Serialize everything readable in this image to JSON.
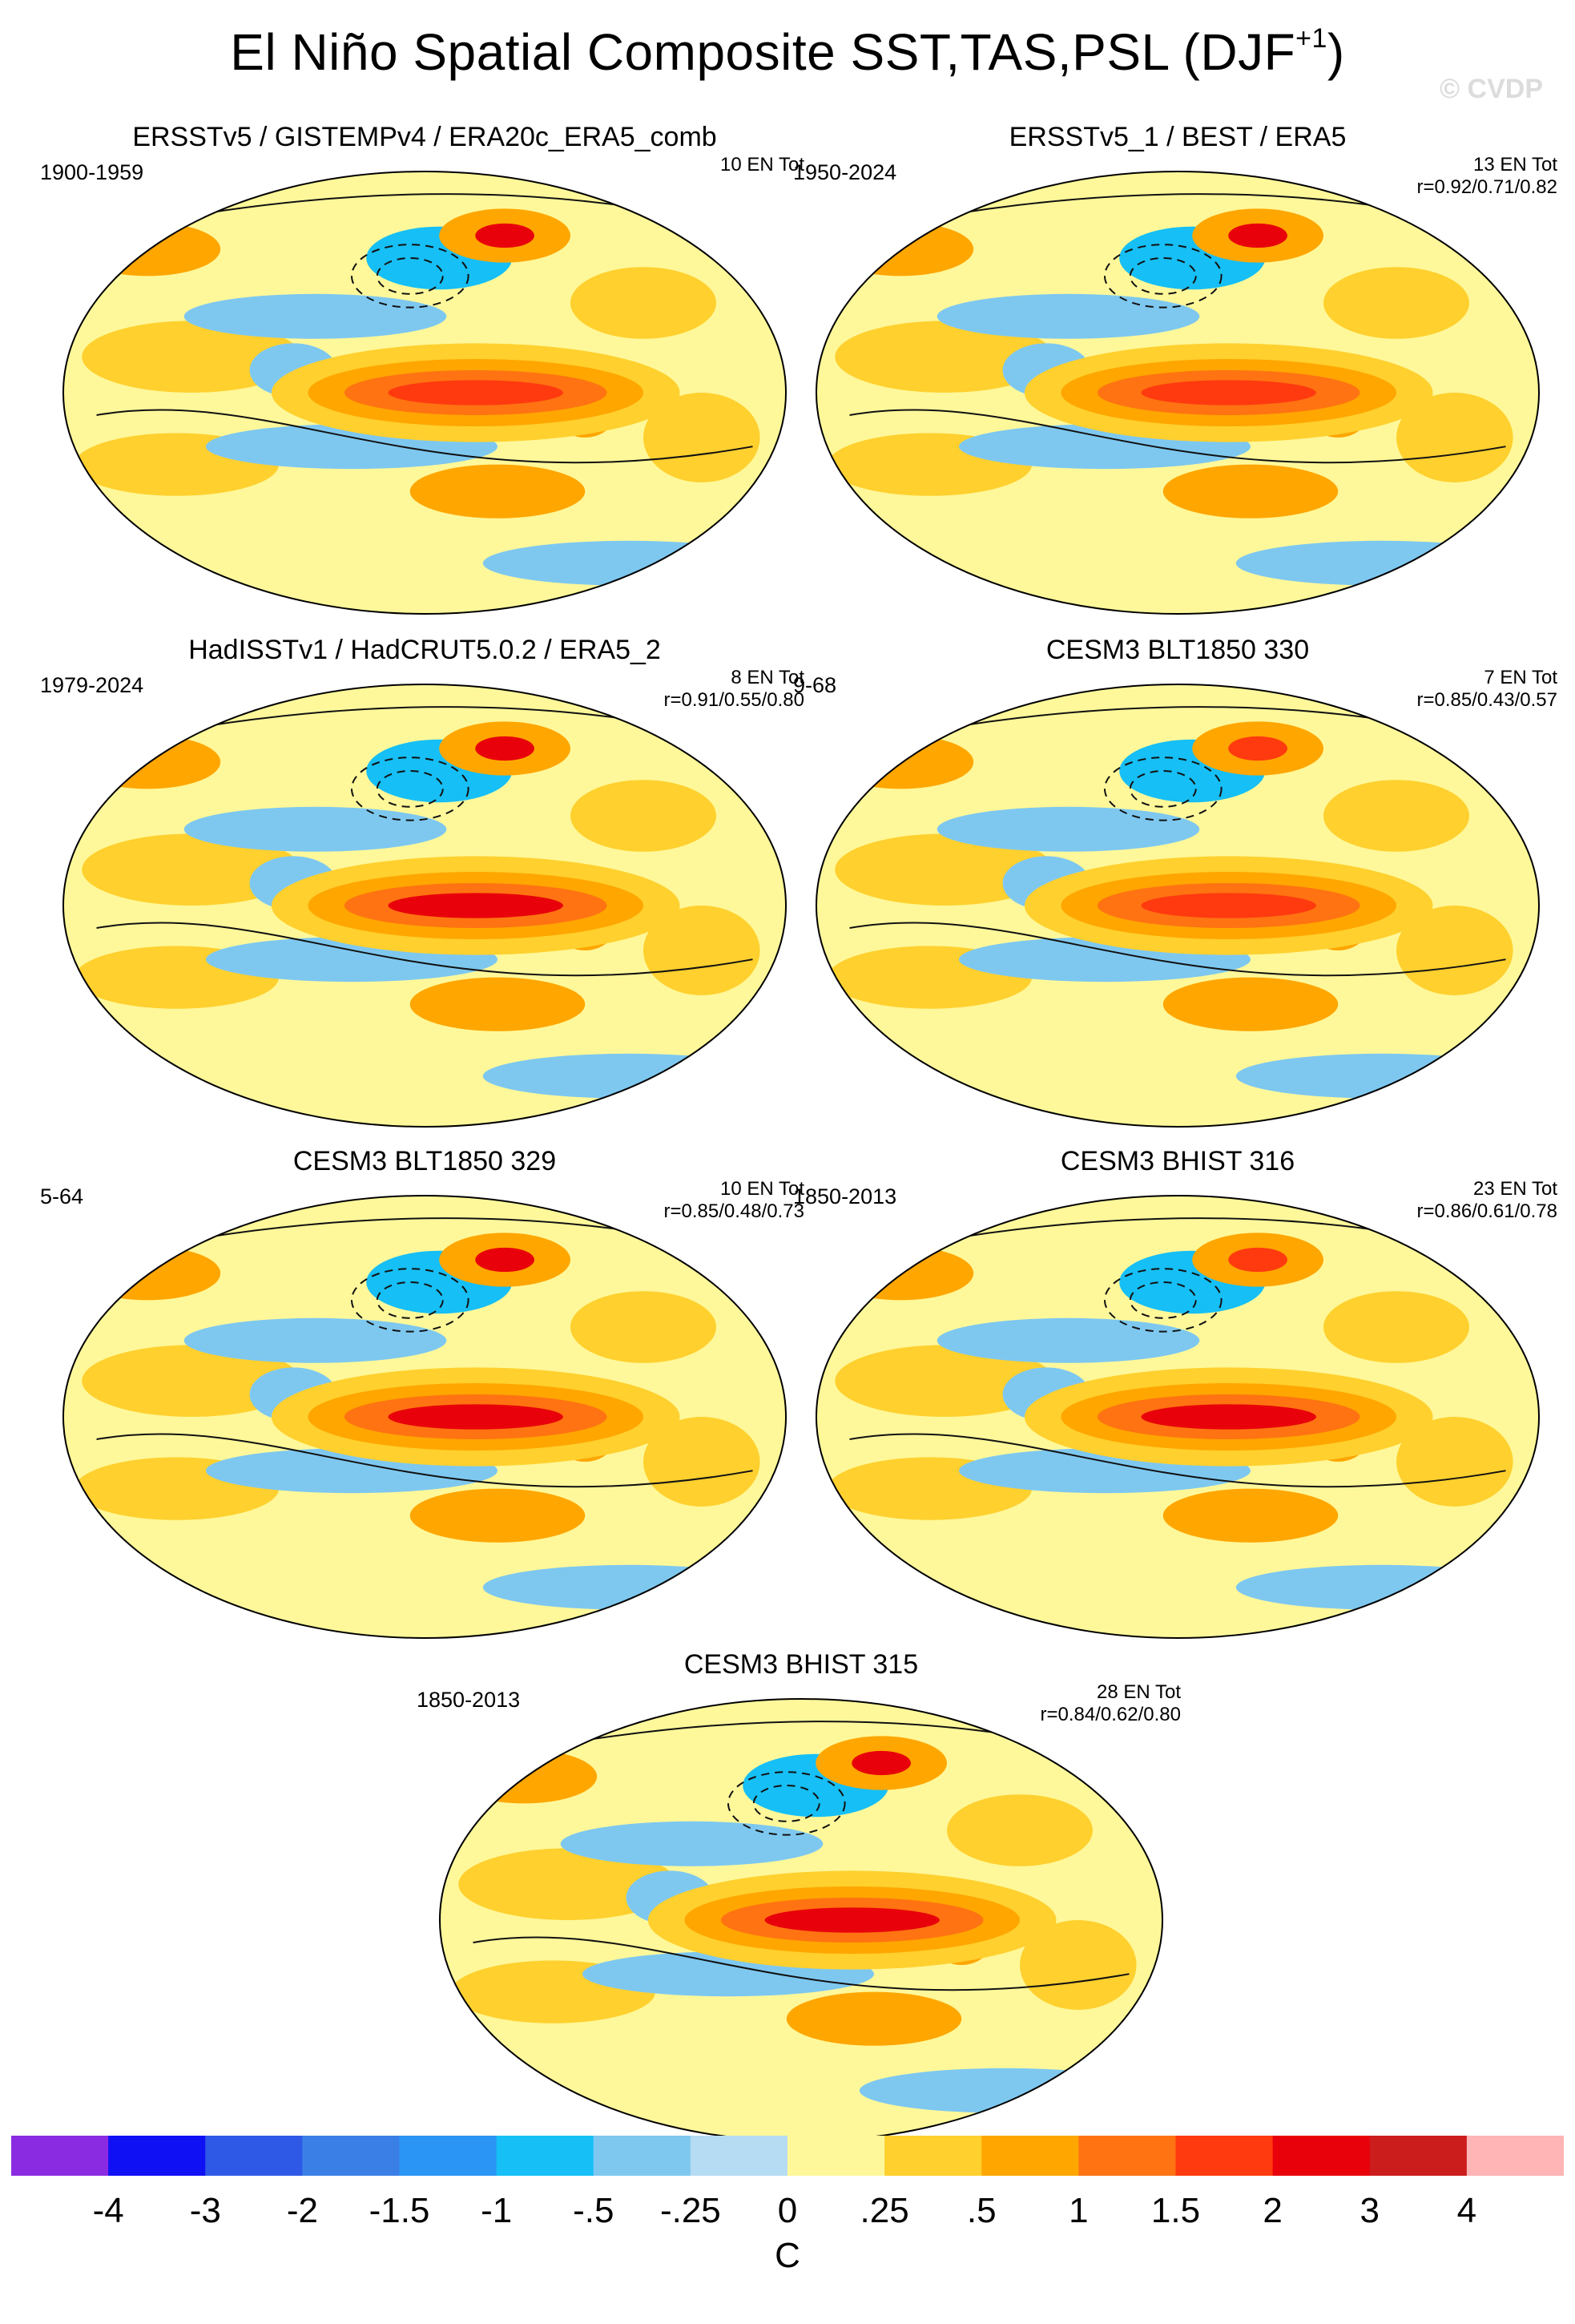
{
  "title_main": "El Niño Spatial Composite SST,TAS,PSL (DJF",
  "title_sup": "+1",
  "title_close": ")",
  "watermark": "© CVDP",
  "chart_data": {
    "type": "heatmap",
    "projection": "robinson-like global maps",
    "units": "C",
    "panels": [
      {
        "title": "ERSSTv5 / GISTEMPv4 / ERA20c_ERA5_comb",
        "period": "1900-1959",
        "n_events": "10 EN Tot",
        "r": "",
        "nino_peak": 1.5,
        "warm_north_america": 2.0
      },
      {
        "title": "ERSSTv5_1 / BEST / ERA5",
        "period": "1950-2024",
        "n_events": "13 EN Tot",
        "r": "r=0.92/0.71/0.82",
        "nino_peak": 1.5,
        "warm_north_america": 2.0
      },
      {
        "title": "HadISSTv1 / HadCRUT5.0.2 / ERA5_2",
        "period": "1979-2024",
        "n_events": "8 EN Tot",
        "r": "r=0.91/0.55/0.80",
        "nino_peak": 2.0,
        "warm_north_america": 2.0
      },
      {
        "title": "CESM3 BLT1850 330",
        "period": "9-68",
        "n_events": "7 EN Tot",
        "r": "r=0.85/0.43/0.57",
        "nino_peak": 1.5,
        "warm_north_america": 1.5
      },
      {
        "title": "CESM3 BLT1850 329",
        "period": "5-64",
        "n_events": "10 EN Tot",
        "r": "r=0.85/0.48/0.73",
        "nino_peak": 2.0,
        "warm_north_america": 2.0
      },
      {
        "title": "CESM3 BHIST 316",
        "period": "1850-2013",
        "n_events": "23 EN Tot",
        "r": "r=0.86/0.61/0.78",
        "nino_peak": 2.0,
        "warm_north_america": 1.5
      },
      {
        "title": "CESM3 BHIST 315",
        "period": "1850-2013",
        "n_events": "28 EN Tot",
        "r": "r=0.84/0.62/0.80",
        "nino_peak": 2.0,
        "warm_north_america": 2.0
      }
    ],
    "colorbar": {
      "label": "C",
      "ticks": [
        "-4",
        "-3",
        "-2",
        "-1.5",
        "-1",
        "-.5",
        "-.25",
        "0",
        ".25",
        ".5",
        "1",
        "1.5",
        "2",
        "3",
        "4"
      ],
      "levels": [
        -4,
        -3,
        -2,
        -1.5,
        -1,
        -0.5,
        -0.25,
        0,
        0.25,
        0.5,
        1,
        1.5,
        2,
        3,
        4
      ],
      "colors": [
        "#8a2be2",
        "#1010f5",
        "#2e59e6",
        "#3a7fe6",
        "#2a95f5",
        "#16bff5",
        "#7ec8f0",
        "#b5dcf2",
        "#fff89a",
        "#ffd02e",
        "#ffa600",
        "#ff7312",
        "#ff3a0f",
        "#e8000a",
        "#cc1d1d",
        "#ffb4b6"
      ]
    }
  }
}
